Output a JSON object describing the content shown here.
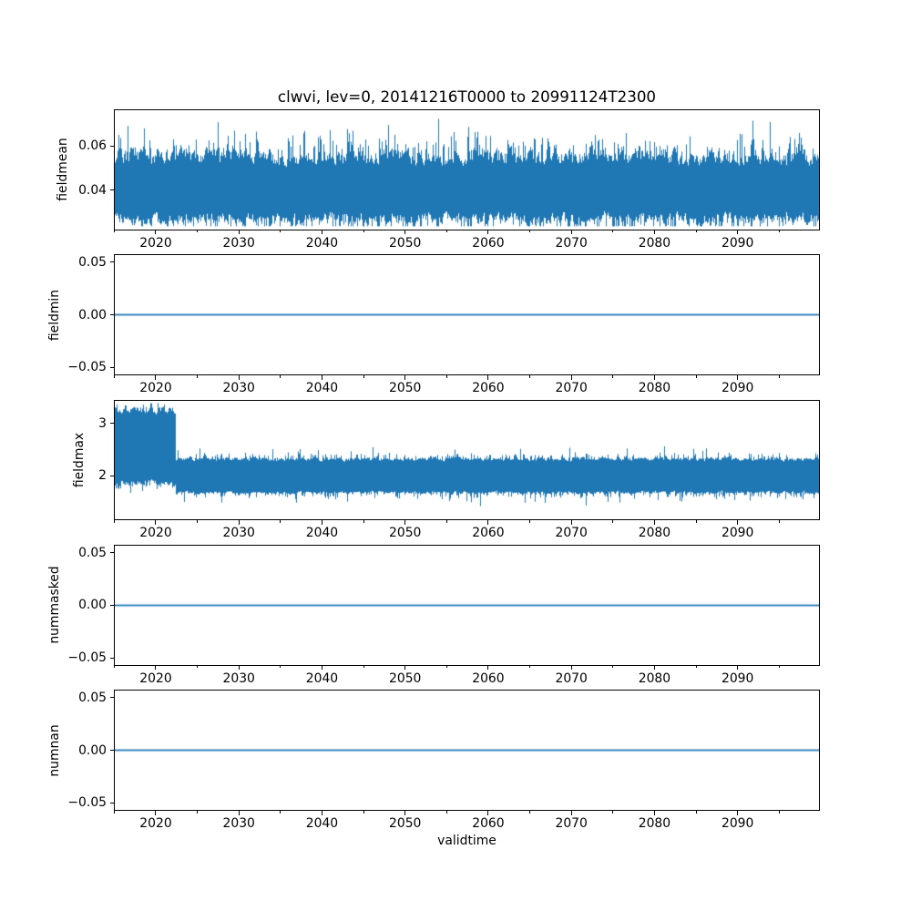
{
  "title": "clwvi, lev=0, 20141216T0000 to 20991124T2300",
  "xlabel": "validtime",
  "accent_color": "#1f77b4",
  "x_axis": {
    "range": [
      2014.96,
      2099.9
    ],
    "major_ticks": [
      2020,
      2030,
      2040,
      2050,
      2060,
      2070,
      2080,
      2090
    ],
    "major_tick_labels": [
      "2020",
      "2030",
      "2040",
      "2050",
      "2060",
      "2070",
      "2080",
      "2090"
    ],
    "minor_ticks": [
      2015,
      2025,
      2035,
      2045,
      2055,
      2065,
      2075,
      2085,
      2095
    ]
  },
  "chart_data": [
    {
      "type": "line",
      "ylabel": "fieldmean",
      "ylim": [
        0.022,
        0.0765
      ],
      "yticks": [
        0.04,
        0.06
      ],
      "ytick_labels": [
        "0.04",
        "0.06"
      ],
      "style": "noise-band",
      "seed": 7,
      "clamp": [
        0.0235,
        0.0745
      ],
      "segments": [
        {
          "from": 2014.96,
          "to": 2099.9,
          "center": 0.0405,
          "up": {
            "base": 0.009,
            "var": 0.012,
            "tail_p": 0.3,
            "tail": 0.009,
            "big_p": 0.035,
            "big": 0.013
          },
          "down": {
            "base": 0.009,
            "var": 0.009,
            "tail_p": 0.28,
            "tail": 0.006,
            "big_p": 0.03,
            "big": 0.006
          }
        }
      ],
      "description": "dense noisy band ~0.03-0.055 over full period, spikes reaching ~0.073 up and ~0.024 down"
    },
    {
      "type": "line",
      "ylabel": "fieldmin",
      "ylim": [
        -0.0575,
        0.0575
      ],
      "yticks": [
        0.05,
        0.0,
        -0.05
      ],
      "ytick_labels": [
        "0.05",
        "0.00",
        "−0.05"
      ],
      "style": "constant",
      "value": 0.0,
      "description": "constant flat line at 0.00"
    },
    {
      "type": "line",
      "ylabel": "fieldmax",
      "ylim": [
        1.15,
        3.45
      ],
      "yticks": [
        3,
        2
      ],
      "ytick_labels": [
        "3",
        "2"
      ],
      "style": "noise-band",
      "seed": 13,
      "clamp": [
        1.33,
        3.42
      ],
      "segments": [
        {
          "from": 2014.96,
          "to": 2022.3,
          "center": 2.56,
          "up": {
            "base": 0.6,
            "var": 0.22,
            "tail_p": 0.3,
            "tail": 0.12,
            "big_p": 0.04,
            "big": 0.12
          },
          "down": {
            "base": 0.6,
            "var": 0.18,
            "tail_p": 0.3,
            "tail": 0.18,
            "big_p": 0.05,
            "big": 0.22
          }
        },
        {
          "from": 2022.3,
          "to": 2099.9,
          "center": 2.0,
          "up": {
            "base": 0.27,
            "var": 0.12,
            "tail_p": 0.3,
            "tail": 0.1,
            "big_p": 0.05,
            "big": 0.2
          },
          "down": {
            "base": 0.27,
            "var": 0.1,
            "tail_p": 0.3,
            "tail": 0.1,
            "big_p": 0.05,
            "big": 0.2
          }
        }
      ],
      "description": "noisy band ~1.8-3.3 from start until ~2022, then steps down to ~1.65-2.35 around mean 2 for the rest of the period"
    },
    {
      "type": "line",
      "ylabel": "nummasked",
      "ylim": [
        -0.0575,
        0.0575
      ],
      "yticks": [
        0.05,
        0.0,
        -0.05
      ],
      "ytick_labels": [
        "0.05",
        "0.00",
        "−0.05"
      ],
      "style": "constant",
      "value": 0.0,
      "description": "constant flat line at 0.00"
    },
    {
      "type": "line",
      "ylabel": "numnan",
      "ylim": [
        -0.0575,
        0.0575
      ],
      "yticks": [
        0.05,
        0.0,
        -0.05
      ],
      "ytick_labels": [
        "0.05",
        "0.00",
        "−0.05"
      ],
      "style": "constant",
      "value": 0.0,
      "description": "constant flat line at 0.00"
    }
  ]
}
